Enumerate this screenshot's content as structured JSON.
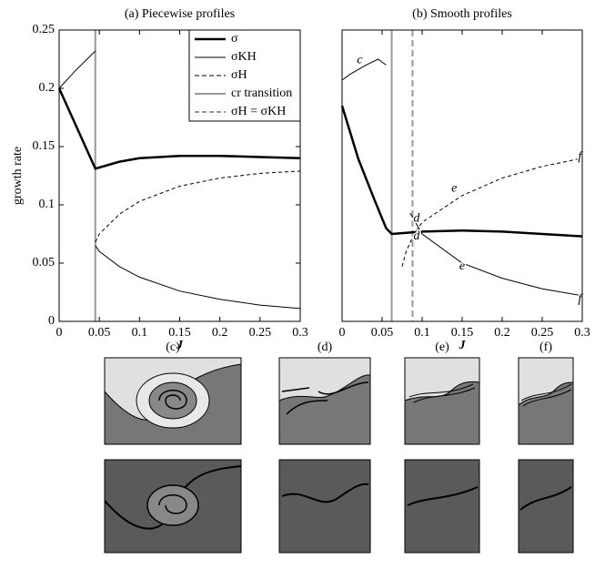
{
  "chart_data": [
    {
      "type": "line",
      "title": "(a) Piecewise profiles",
      "xlabel": "J",
      "ylabel": "growth rate",
      "xlim": [
        0,
        0.3
      ],
      "xticks": [
        0,
        0.05,
        0.1,
        0.15,
        0.2,
        0.25,
        0.3
      ],
      "ylim": [
        0,
        0.25
      ],
      "yticks": [
        0,
        0.05,
        0.1,
        0.15,
        0.2,
        0.25
      ],
      "legend_position": "upper right",
      "legend": [
        {
          "name": "σ",
          "color": "#000000",
          "width": 2.5,
          "dash": false
        },
        {
          "name": "σKH",
          "color": "#000000",
          "width": 1,
          "dash": false
        },
        {
          "name": "σH",
          "color": "#000000",
          "width": 1,
          "dash": true
        },
        {
          "name": "cr transition",
          "color": "#999999",
          "width": 2,
          "dash": false
        },
        {
          "name": "σH = σKH",
          "color": "#999999",
          "width": 2,
          "dash": true
        }
      ],
      "series": [
        {
          "x": [
            0,
            0.045,
            0.05,
            0.075,
            0.1,
            0.15,
            0.2,
            0.25,
            0.3
          ],
          "values": [
            0.2,
            0.131,
            0.132,
            0.137,
            0.14,
            0.142,
            0.142,
            0.141,
            0.14
          ],
          "color": "#000000",
          "width": 2.5,
          "dash": false
        },
        {
          "x": [
            0,
            0.02,
            0.045
          ],
          "values": [
            0.2,
            0.215,
            0.232
          ],
          "color": "#000000",
          "width": 1,
          "dash": false
        },
        {
          "x": [
            0.045,
            0.05,
            0.075,
            0.1,
            0.15,
            0.2,
            0.25,
            0.3
          ],
          "values": [
            0.065,
            0.06,
            0.047,
            0.038,
            0.026,
            0.019,
            0.014,
            0.011
          ],
          "color": "#000000",
          "width": 1,
          "dash": false
        },
        {
          "x": [
            0.045,
            0.05,
            0.075,
            0.1,
            0.15,
            0.2,
            0.25,
            0.3
          ],
          "values": [
            0.068,
            0.075,
            0.092,
            0.103,
            0.116,
            0.123,
            0.127,
            0.129
          ],
          "color": "#000000",
          "width": 1,
          "dash": true
        }
      ],
      "vlines": [
        {
          "x": 0.045,
          "color": "#999999",
          "dash": false
        }
      ],
      "annotations": []
    },
    {
      "type": "line",
      "title": "(b) Smooth profiles",
      "xlabel": "J",
      "xlim": [
        0,
        0.3
      ],
      "xticks": [
        0,
        0.05,
        0.1,
        0.15,
        0.2,
        0.25,
        0.3
      ],
      "ylim": [
        0,
        0.25
      ],
      "series": [
        {
          "x": [
            0,
            0.02,
            0.04,
            0.055,
            0.062,
            0.08,
            0.1,
            0.15,
            0.2,
            0.25,
            0.3
          ],
          "values": [
            0.185,
            0.14,
            0.105,
            0.08,
            0.075,
            0.076,
            0.077,
            0.078,
            0.077,
            0.075,
            0.073
          ],
          "color": "#000000",
          "width": 2.5,
          "dash": false
        },
        {
          "x": [
            0,
            0.01,
            0.03,
            0.045,
            0.055
          ],
          "values": [
            0.207,
            0.212,
            0.22,
            0.225,
            0.22
          ],
          "color": "#000000",
          "width": 1,
          "dash": false
        },
        {
          "x": [
            0.085,
            0.1,
            0.15,
            0.2,
            0.25,
            0.3
          ],
          "values": [
            0.093,
            0.075,
            0.05,
            0.037,
            0.028,
            0.022
          ],
          "color": "#000000",
          "width": 1,
          "dash": false
        },
        {
          "x": [
            0.075,
            0.08,
            0.09,
            0.1,
            0.15,
            0.2,
            0.25,
            0.3
          ],
          "values": [
            0.047,
            0.06,
            0.075,
            0.085,
            0.108,
            0.123,
            0.133,
            0.14
          ],
          "color": "#000000",
          "width": 1,
          "dash": true
        }
      ],
      "vlines": [
        {
          "x": 0.062,
          "color": "#999999",
          "dash": false
        },
        {
          "x": 0.088,
          "color": "#999999",
          "dash": true
        }
      ],
      "annotations": [
        {
          "text": "c",
          "x": 0.022,
          "y": 0.224
        },
        {
          "text": "d",
          "x": 0.093,
          "y": 0.088
        },
        {
          "text": "d",
          "x": 0.093,
          "y": 0.073
        },
        {
          "text": "e",
          "x": 0.14,
          "y": 0.114
        },
        {
          "text": "e",
          "x": 0.15,
          "y": 0.047
        },
        {
          "text": "f",
          "x": 0.297,
          "y": 0.141
        },
        {
          "text": "f",
          "x": 0.297,
          "y": 0.019
        }
      ]
    }
  ],
  "panels": [
    "(c)",
    "(d)",
    "(e)",
    "(f)"
  ]
}
